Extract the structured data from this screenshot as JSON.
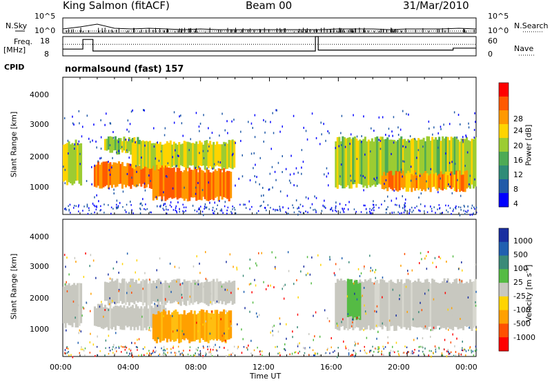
{
  "header": {
    "title": "King Salmon (fitACF)",
    "beam": "Beam 00",
    "date": "31/Mar/2010"
  },
  "chart_data": [
    {
      "type": "line",
      "panel": "noise",
      "left_label": "N.Sky",
      "right_label": "N.Search",
      "tick_labels": [
        "10^5",
        "10^0"
      ],
      "x": [
        "00:00",
        "01:00",
        "02:00",
        "03:00",
        "04:00",
        "05:00",
        "06:00",
        "07:00",
        "08:00",
        "09:00",
        "10:00",
        "11:00",
        "12:00",
        "13:00",
        "14:00",
        "15:00",
        "16:00",
        "17:00",
        "18:00",
        "19:00",
        "20:00",
        "21:00",
        "22:00",
        "23:00",
        "24:00"
      ],
      "series": [
        {
          "name": "N.Sky",
          "values": [
            5,
            8,
            12,
            6,
            5,
            6,
            5,
            4,
            5,
            4,
            4,
            4,
            4,
            4,
            4,
            4,
            5,
            5,
            5,
            4,
            5,
            5,
            5,
            6,
            5
          ]
        },
        {
          "name": "N.Search",
          "values": [
            2,
            2,
            2,
            2,
            2,
            2,
            2,
            2,
            2,
            2,
            2,
            2,
            2,
            2,
            2,
            2,
            2,
            2,
            2,
            2,
            2,
            2,
            2,
            2,
            2
          ]
        }
      ]
    },
    {
      "type": "line",
      "panel": "frequency",
      "left_label": "Freq.",
      "left_unit": "[MHz]",
      "right_label": "Nave",
      "left_ticks": [
        "18",
        "8"
      ],
      "right_ticks": [
        "60",
        "0"
      ],
      "cpid_label": "CPID",
      "cpid_text": "normalsound (fast) 157",
      "series": [
        {
          "name": "Freq.",
          "segments": [
            {
              "start": "00:00",
              "end": "01:10",
              "value": 11.5
            },
            {
              "start": "01:10",
              "end": "01:45",
              "value": 16.5
            },
            {
              "start": "01:45",
              "end": "14:40",
              "value": 10.5
            },
            {
              "start": "14:40",
              "end": "14:50",
              "value": 18
            },
            {
              "start": "14:50",
              "end": "22:40",
              "value": 11
            },
            {
              "start": "22:40",
              "end": "24:00",
              "value": 12
            }
          ]
        },
        {
          "name": "Nave",
          "value": 36
        }
      ]
    },
    {
      "type": "heatmap",
      "panel": "power",
      "ylabel": "Slant Range [km]",
      "yticks": [
        "4000",
        "3000",
        "2000",
        "1000"
      ],
      "ylim": [
        180,
        4600
      ],
      "colorbar_label": "Power [dB]",
      "colorbar_ticks": [
        "28",
        "24",
        "20",
        "16",
        "12",
        "8",
        "4"
      ],
      "colorbar_colors": [
        "#ff0000",
        "#ff5a00",
        "#ff9900",
        "#ffd400",
        "#9ccc32",
        "#4daa55",
        "#2e8b77",
        "#215aa8",
        "#0000ff"
      ],
      "regions": [
        {
          "t0": 0.0,
          "t1": 1.1,
          "r0": 1100,
          "r1": 2600,
          "level": 14
        },
        {
          "t0": 1.8,
          "t1": 6.0,
          "r0": 1000,
          "r1": 1900,
          "level": 22
        },
        {
          "t0": 2.4,
          "t1": 4.5,
          "r0": 2100,
          "r1": 2700,
          "level": 12
        },
        {
          "t0": 4.0,
          "t1": 10.0,
          "r0": 1600,
          "r1": 2600,
          "level": 14
        },
        {
          "t0": 5.2,
          "t1": 9.8,
          "r0": 600,
          "r1": 1700,
          "level": 22
        },
        {
          "t0": 15.8,
          "t1": 24.0,
          "r0": 1000,
          "r1": 2700,
          "level": 12
        },
        {
          "t0": 18.5,
          "t1": 23.5,
          "r0": 900,
          "r1": 1600,
          "level": 20
        }
      ]
    },
    {
      "type": "heatmap",
      "panel": "velocity",
      "ylabel": "Slant Range [km]",
      "yticks": [
        "4000",
        "3000",
        "2000",
        "1000"
      ],
      "ylim": [
        180,
        4600
      ],
      "colorbar_label": "Velocity [m s",
      "colorbar_label_sup": "-1",
      "colorbar_label_end": "]",
      "colorbar_ticks": [
        "1000",
        "500",
        "100",
        "25",
        "-25",
        "-100",
        "-500",
        "-1000"
      ],
      "colorbar_colors": [
        "#1a2fa0",
        "#2060b0",
        "#3a8a78",
        "#55bb44",
        "#c8c8c0",
        "#ffd400",
        "#ffa000",
        "#ff5000",
        "#ff0000"
      ],
      "regions": [
        {
          "t0": 0.0,
          "t1": 1.1,
          "r0": 1100,
          "r1": 2600,
          "v": 0
        },
        {
          "t0": 1.8,
          "t1": 6.0,
          "r0": 1000,
          "r1": 1900,
          "v": 0
        },
        {
          "t0": 2.4,
          "t1": 10.0,
          "r0": 1800,
          "r1": 2700,
          "v": 0
        },
        {
          "t0": 5.2,
          "t1": 9.8,
          "r0": 600,
          "r1": 1700,
          "v": -200
        },
        {
          "t0": 15.8,
          "t1": 24.0,
          "r0": 1000,
          "r1": 2700,
          "v": 0
        },
        {
          "t0": 16.5,
          "t1": 17.3,
          "r0": 1300,
          "r1": 2700,
          "v": 150
        }
      ]
    }
  ],
  "xaxis": {
    "ticks": [
      "00:00",
      "04:00",
      "08:00",
      "12:00",
      "16:00",
      "20:00",
      "00:00"
    ],
    "label": "Time UT"
  }
}
